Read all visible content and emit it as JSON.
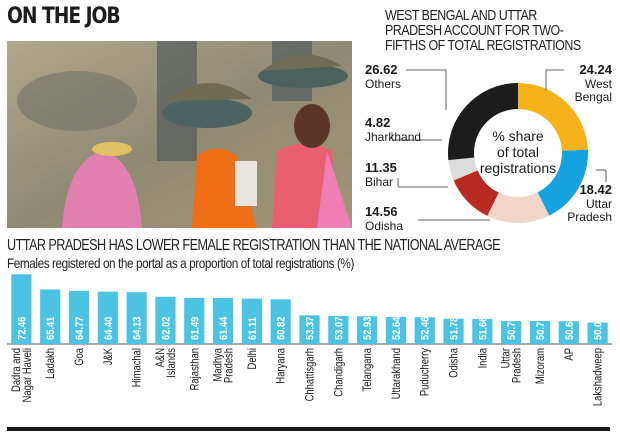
{
  "header": {
    "title": "ON THE JOB"
  },
  "photo": {
    "description": "Women workers carrying pans of soil on their heads"
  },
  "chart_data": [
    {
      "type": "pie",
      "variant": "donut",
      "title": "WEST BENGAL AND UTTAR PRADESH ACCOUNT FOR TWO-FIFTHS OF TOTAL REGISTRATIONS",
      "center_label": [
        "% share",
        "of total",
        "registrations"
      ],
      "slices": [
        {
          "label": "West Bengal",
          "label_lines": [
            "West",
            "Bengal"
          ],
          "value": 24.24,
          "value_text": "24.24",
          "color": "#f6b21b"
        },
        {
          "label": "Uttar Pradesh",
          "label_lines": [
            "Uttar",
            "Pradesh"
          ],
          "value": 18.42,
          "value_text": "18.42",
          "color": "#14a3e0"
        },
        {
          "label": "Odisha",
          "label_lines": [
            "Odisha"
          ],
          "value": 14.56,
          "value_text": "14.56",
          "color": "#f1d6c7"
        },
        {
          "label": "Bihar",
          "label_lines": [
            "Bihar"
          ],
          "value": 11.35,
          "value_text": "11.35",
          "color": "#b92a22"
        },
        {
          "label": "Jharkhand",
          "label_lines": [
            "Jharkhand"
          ],
          "value": 4.82,
          "value_text": "4.82",
          "color": "#dcdcdc"
        },
        {
          "label": "Others",
          "label_lines": [
            "Others"
          ],
          "value": 26.62,
          "value_text": "26.62",
          "color": "#1c1c1c"
        }
      ]
    },
    {
      "type": "bar",
      "title": "UTTAR PRADESH HAS LOWER FEMALE REGISTRATION THAN THE NATIONAL AVERAGE",
      "subtitle": "Females registered on the portal as a proportion of total registrations (%)",
      "xlabel": "",
      "ylabel": "",
      "bar_color": "#4dc3e3",
      "categories": [
        "Dadra and Nagar Haveli",
        "Ladakh",
        "Goa",
        "J&K",
        "Himachal",
        "A&N Islands",
        "Rajasthan",
        "Madhya Pradesh",
        "Delhi",
        "Haryana",
        "Chhattisgarh",
        "Chandigarh",
        "Telangana",
        "Uttarakhand",
        "Puducherry",
        "Odisha",
        "India",
        "Uttar Pradesh",
        "Mizoram",
        "AP",
        "Lakshadweep"
      ],
      "category_lines": [
        [
          "Dadra and",
          "Nagar Haveli"
        ],
        [
          "Ladakh"
        ],
        [
          "Goa"
        ],
        [
          "J&K"
        ],
        [
          "Himachal"
        ],
        [
          "A&N",
          "Islands"
        ],
        [
          "Rajasthan"
        ],
        [
          "Madhya",
          "Pradesh"
        ],
        [
          "Delhi"
        ],
        [
          "Haryana"
        ],
        [
          "Chhattisgarh"
        ],
        [
          "Chandigarh"
        ],
        [
          "Telangana"
        ],
        [
          "Uttarakhand"
        ],
        [
          "Puducherry"
        ],
        [
          "Odisha"
        ],
        [
          "India"
        ],
        [
          "Uttar",
          "Pradesh"
        ],
        [
          "Mizoram"
        ],
        [
          "AP"
        ],
        [
          "Lakshadweep"
        ]
      ],
      "values": [
        72.46,
        65.41,
        64.77,
        64.4,
        64.13,
        62.02,
        61.49,
        61.44,
        61.11,
        60.82,
        53.37,
        53.07,
        52.93,
        52.64,
        52.46,
        51.78,
        51.66,
        50.75,
        50.71,
        50.6,
        50.0
      ],
      "value_labels": [
        "72.46",
        "65.41",
        "64.77",
        "64.40",
        "64.13",
        "62.02",
        "61.49",
        "61.44",
        "61.11",
        "60.82",
        "53.37",
        "53.07",
        "52.93",
        "52.64",
        "52.46",
        "51.78",
        "51.66",
        "50.75",
        "50.71",
        "50.60",
        "50.00"
      ],
      "axis_labels_rotated": true
    }
  ]
}
